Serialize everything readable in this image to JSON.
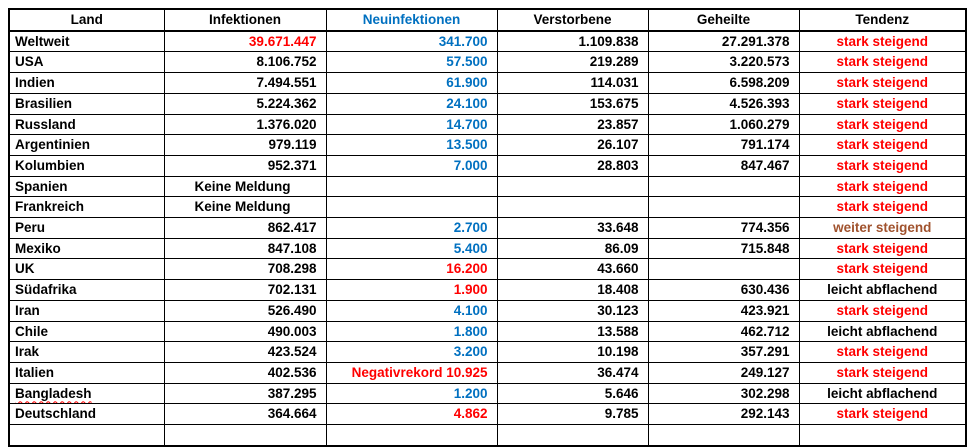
{
  "colors": {
    "black": "#000000",
    "red": "#FF0000",
    "blue": "#0070C0",
    "brown": "#A0522D"
  },
  "table": {
    "headers": [
      {
        "label": "Land",
        "color": "black"
      },
      {
        "label": "Infektionen",
        "color": "black"
      },
      {
        "label": "Neuinfektionen",
        "color": "blue"
      },
      {
        "label": "Verstorbene",
        "color": "black"
      },
      {
        "label": "Geheilte",
        "color": "black"
      },
      {
        "label": "Tendenz",
        "color": "black"
      }
    ],
    "rows": [
      {
        "cells": [
          {
            "text": "Weltweit"
          },
          {
            "text": "39.671.447",
            "color": "red"
          },
          {
            "text": "341.700",
            "color": "blue"
          },
          {
            "text": "1.109.838"
          },
          {
            "text": "27.291.378"
          },
          {
            "text": "stark steigend",
            "color": "red"
          }
        ]
      },
      {
        "cells": [
          {
            "text": "USA"
          },
          {
            "text": "8.106.752"
          },
          {
            "text": "57.500",
            "color": "blue"
          },
          {
            "text": "219.289"
          },
          {
            "text": "3.220.573"
          },
          {
            "text": "stark steigend",
            "color": "red"
          }
        ]
      },
      {
        "cells": [
          {
            "text": "Indien"
          },
          {
            "text": "7.494.551"
          },
          {
            "text": "61.900",
            "color": "blue"
          },
          {
            "text": "114.031"
          },
          {
            "text": "6.598.209"
          },
          {
            "text": "stark steigend",
            "color": "red"
          }
        ]
      },
      {
        "cells": [
          {
            "text": "Brasilien"
          },
          {
            "text": "5.224.362"
          },
          {
            "text": "24.100",
            "color": "blue"
          },
          {
            "text": "153.675"
          },
          {
            "text": "4.526.393"
          },
          {
            "text": "stark steigend",
            "color": "red"
          }
        ]
      },
      {
        "cells": [
          {
            "text": "Russland"
          },
          {
            "text": "1.376.020"
          },
          {
            "text": "14.700",
            "color": "blue"
          },
          {
            "text": "23.857"
          },
          {
            "text": "1.060.279"
          },
          {
            "text": "stark steigend",
            "color": "red"
          }
        ]
      },
      {
        "cells": [
          {
            "text": "Argentinien"
          },
          {
            "text": "979.119"
          },
          {
            "text": "13.500",
            "color": "blue"
          },
          {
            "text": "26.107"
          },
          {
            "text": "791.174"
          },
          {
            "text": "stark steigend",
            "color": "red"
          }
        ]
      },
      {
        "cells": [
          {
            "text": "Kolumbien"
          },
          {
            "text": "952.371"
          },
          {
            "text": "7.000",
            "color": "blue"
          },
          {
            "text": "28.803"
          },
          {
            "text": "847.467"
          },
          {
            "text": "stark steigend",
            "color": "red"
          }
        ]
      },
      {
        "cells": [
          {
            "text": "Spanien"
          },
          {
            "text": "Keine Meldung",
            "align": "center"
          },
          {
            "text": ""
          },
          {
            "text": ""
          },
          {
            "text": ""
          },
          {
            "text": "stark steigend",
            "color": "red"
          }
        ]
      },
      {
        "cells": [
          {
            "text": "Frankreich"
          },
          {
            "text": "Keine Meldung",
            "align": "center"
          },
          {
            "text": ""
          },
          {
            "text": ""
          },
          {
            "text": ""
          },
          {
            "text": "stark steigend",
            "color": "red"
          }
        ]
      },
      {
        "cells": [
          {
            "text": "Peru"
          },
          {
            "text": "862.417"
          },
          {
            "text": "2.700",
            "color": "blue"
          },
          {
            "text": "33.648"
          },
          {
            "text": "774.356"
          },
          {
            "text": "weiter steigend",
            "color": "brown"
          }
        ]
      },
      {
        "cells": [
          {
            "text": "Mexiko"
          },
          {
            "text": "847.108"
          },
          {
            "text": "5.400",
            "color": "blue"
          },
          {
            "text": "86.09"
          },
          {
            "text": "715.848"
          },
          {
            "text": "stark steigend",
            "color": "red"
          }
        ]
      },
      {
        "cells": [
          {
            "text": "UK"
          },
          {
            "text": "708.298"
          },
          {
            "text": "16.200",
            "color": "red"
          },
          {
            "text": "43.660"
          },
          {
            "text": ""
          },
          {
            "text": "stark steigend",
            "color": "red"
          }
        ]
      },
      {
        "cells": [
          {
            "text": "Südafrika"
          },
          {
            "text": "702.131"
          },
          {
            "text": "1.900",
            "color": "red"
          },
          {
            "text": "18.408"
          },
          {
            "text": "630.436"
          },
          {
            "text": "leicht abflachend"
          }
        ]
      },
      {
        "cells": [
          {
            "text": "Iran"
          },
          {
            "text": "526.490"
          },
          {
            "text": "4.100",
            "color": "blue"
          },
          {
            "text": "30.123"
          },
          {
            "text": "423.921"
          },
          {
            "text": "stark steigend",
            "color": "red"
          }
        ]
      },
      {
        "cells": [
          {
            "text": "Chile"
          },
          {
            "text": "490.003"
          },
          {
            "text": "1.800",
            "color": "blue"
          },
          {
            "text": "13.588"
          },
          {
            "text": "462.712"
          },
          {
            "text": "leicht abflachend"
          }
        ]
      },
      {
        "cells": [
          {
            "text": "Irak"
          },
          {
            "text": "423.524"
          },
          {
            "text": "3.200",
            "color": "blue"
          },
          {
            "text": "10.198"
          },
          {
            "text": "357.291"
          },
          {
            "text": "stark steigend",
            "color": "red"
          }
        ]
      },
      {
        "cells": [
          {
            "text": "Italien"
          },
          {
            "text": "402.536"
          },
          {
            "text": "Negativrekord 10.925",
            "color": "red"
          },
          {
            "text": "36.474"
          },
          {
            "text": "249.127"
          },
          {
            "text": "stark steigend",
            "color": "red"
          }
        ]
      },
      {
        "cells": [
          {
            "text": "Bangladesh",
            "spellcheck_underline": true
          },
          {
            "text": "387.295"
          },
          {
            "text": "1.200",
            "color": "blue"
          },
          {
            "text": "5.646"
          },
          {
            "text": "302.298"
          },
          {
            "text": "leicht abflachend"
          }
        ]
      },
      {
        "cells": [
          {
            "text": "Deutschland"
          },
          {
            "text": "364.664"
          },
          {
            "text": "4.862",
            "color": "red"
          },
          {
            "text": "9.785"
          },
          {
            "text": "292.143"
          },
          {
            "text": "stark steigend",
            "color": "red"
          }
        ]
      }
    ]
  }
}
